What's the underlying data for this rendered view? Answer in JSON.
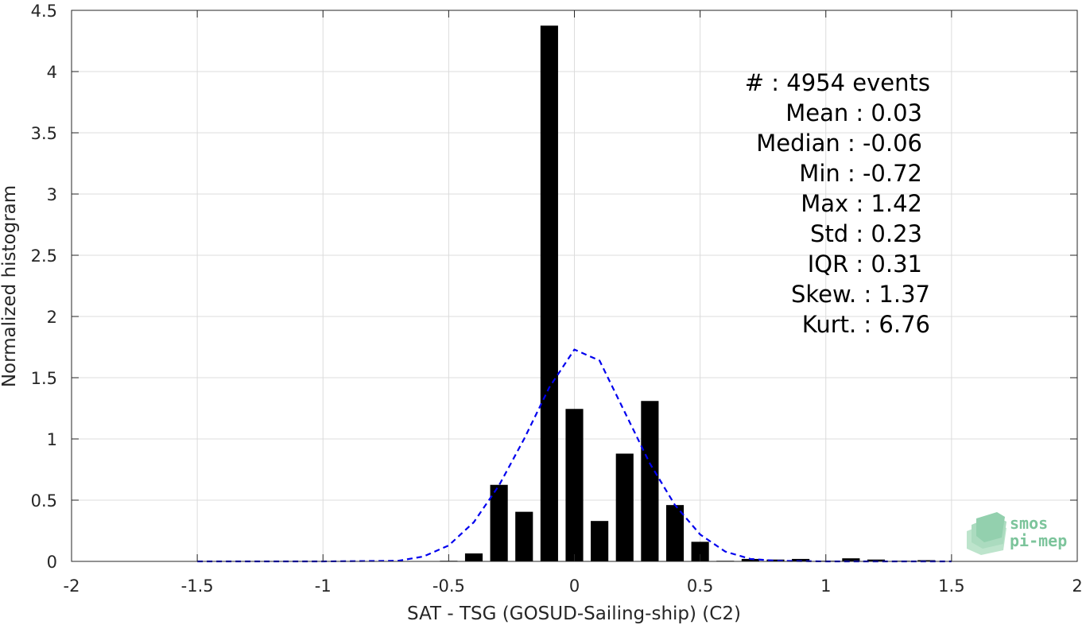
{
  "chart_data": {
    "type": "bar",
    "xlabel": "SAT - TSG (GOSUD-Sailing-ship) (C2)",
    "ylabel": "Normalized histogram",
    "xlim": [
      -2,
      2
    ],
    "ylim": [
      0,
      4.5
    ],
    "xticks": [
      -2,
      -1.5,
      -1,
      -0.5,
      0,
      0.5,
      1,
      1.5,
      2
    ],
    "xtick_labels": [
      "-2",
      "-1.5",
      "-1",
      "-0.5",
      "0",
      "0.5",
      "1",
      "1.5",
      "2"
    ],
    "yticks": [
      0,
      0.5,
      1,
      1.5,
      2,
      2.5,
      3,
      3.5,
      4,
      4.5
    ],
    "ytick_labels": [
      "0",
      "0.5",
      "1",
      "1.5",
      "2",
      "2.5",
      "3",
      "3.5",
      "4",
      "4.5"
    ],
    "grid": true,
    "bar_width": 0.07,
    "bars": {
      "x": [
        -0.5,
        -0.4,
        -0.3,
        -0.2,
        -0.1,
        0.0,
        0.1,
        0.2,
        0.3,
        0.4,
        0.5,
        0.6,
        0.7,
        0.8,
        0.9,
        1.0,
        1.1,
        1.2,
        1.3,
        1.4
      ],
      "values": [
        0.005,
        0.065,
        0.625,
        0.405,
        4.375,
        1.245,
        0.33,
        0.88,
        1.31,
        0.46,
        0.16,
        0.005,
        0.02,
        0.015,
        0.02,
        0.005,
        0.025,
        0.015,
        0.005,
        0.01
      ]
    },
    "fit_curve": {
      "style": "dashed",
      "color": "#0000ee",
      "x": [
        -1.5,
        -1.0,
        -0.7,
        -0.6,
        -0.5,
        -0.4,
        -0.3,
        -0.2,
        -0.1,
        0.0,
        0.1,
        0.2,
        0.3,
        0.4,
        0.5,
        0.6,
        0.7,
        0.8,
        1.0,
        1.2,
        1.5
      ],
      "y": [
        0.0,
        0.0,
        0.005,
        0.04,
        0.13,
        0.32,
        0.62,
        1.0,
        1.42,
        1.73,
        1.64,
        1.22,
        0.8,
        0.46,
        0.22,
        0.08,
        0.02,
        0.005,
        0.0,
        0.0,
        0.0
      ]
    },
    "stats": [
      "#  : 4954 events",
      "Mean : 0.03",
      "Median : -0.06",
      "Min : -0.72",
      "Max : 1.42",
      "Std : 0.23",
      "IQR : 0.31",
      "Skew. : 1.37",
      "Kurt. : 6.76"
    ],
    "bar_color": "#000000",
    "logo": {
      "line1": "smos",
      "line2": "pi-mep",
      "color": "#7cc49b"
    }
  }
}
